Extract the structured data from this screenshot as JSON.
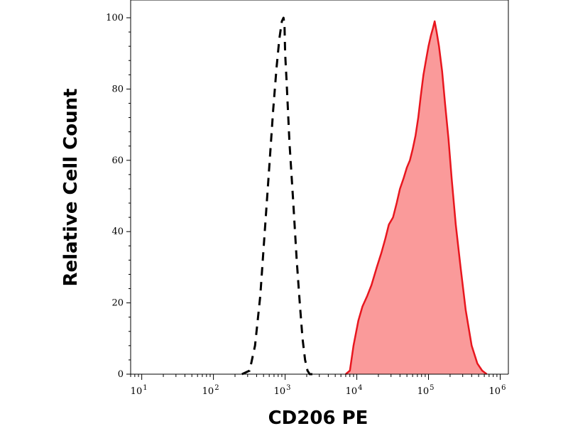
{
  "chart_data": {
    "type": "area",
    "title": "",
    "xlabel": "CD206 PE",
    "ylabel": "Relative Cell Count",
    "x_scale": "log",
    "xlim": [
      7,
      1300000.0
    ],
    "ylim": [
      0,
      100
    ],
    "x_ticks": [
      {
        "value": 10,
        "base": "10",
        "exp": "1"
      },
      {
        "value": 100,
        "base": "10",
        "exp": "2"
      },
      {
        "value": 1000,
        "base": "10",
        "exp": "3"
      },
      {
        "value": 10000,
        "base": "10",
        "exp": "4"
      },
      {
        "value": 100000,
        "base": "10",
        "exp": "5"
      },
      {
        "value": 1000000,
        "base": "10",
        "exp": "6"
      }
    ],
    "y_ticks": [
      0,
      20,
      40,
      60,
      80,
      100
    ],
    "grid": false,
    "legend": "none",
    "series": [
      {
        "style": "dashed",
        "color": "#000000",
        "fill": "none",
        "x": [
          250,
          320,
          380,
          450,
          520,
          600,
          680,
          760,
          830,
          900,
          950,
          980,
          1000,
          1050,
          1150,
          1300,
          1450,
          1600,
          1750,
          1900,
          2050,
          2200,
          2400
        ],
        "y": [
          0,
          1,
          8,
          22,
          40,
          58,
          74,
          86,
          94,
          99,
          100,
          98,
          90,
          82,
          65,
          48,
          32,
          20,
          10,
          4,
          1,
          0,
          0
        ]
      },
      {
        "style": "solid",
        "color": "#e8161e",
        "fill": "#fa9a9a",
        "x": [
          7000,
          8000,
          9000,
          10500,
          12000,
          14000,
          16000,
          19000,
          22000,
          25000,
          28000,
          32000,
          36000,
          40000,
          45000,
          50000,
          55000,
          60000,
          66000,
          72000,
          78000,
          85000,
          92000,
          100000,
          108000,
          115000,
          122000,
          130000,
          140000,
          155000,
          170000,
          190000,
          210000,
          240000,
          280000,
          330000,
          400000,
          480000,
          560000,
          650000
        ],
        "y": [
          0,
          1,
          8,
          15,
          19,
          22,
          25,
          30,
          34,
          38,
          42,
          44,
          48,
          52,
          55,
          58,
          60,
          63,
          67,
          72,
          78,
          84,
          88,
          92,
          95,
          97,
          99,
          96,
          92,
          85,
          76,
          66,
          55,
          42,
          30,
          18,
          8,
          3,
          1,
          0
        ]
      }
    ]
  }
}
